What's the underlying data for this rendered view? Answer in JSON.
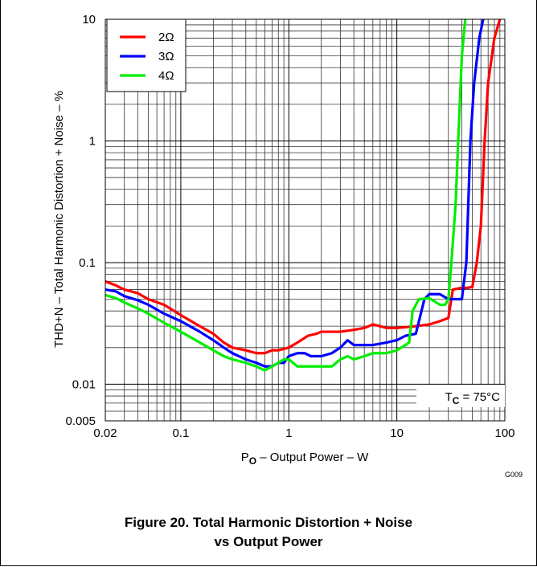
{
  "chart_data": {
    "type": "line",
    "xlabel_main": "P",
    "xlabel_sub": "O",
    "xlabel_rest": " – Output Power – W",
    "ylabel": "THD+N – Total Harmonic Distortion + Noise – %",
    "x_scale": "log",
    "y_scale": "log",
    "xlim": [
      0.02,
      100
    ],
    "ylim": [
      0.005,
      10
    ],
    "grid": true,
    "legend_position": "top-left",
    "x_ticks": [
      {
        "value": 0.02,
        "label": "0.02"
      },
      {
        "value": 0.1,
        "label": "0.1"
      },
      {
        "value": 1,
        "label": "1"
      },
      {
        "value": 10,
        "label": "10"
      },
      {
        "value": 100,
        "label": "100"
      }
    ],
    "y_ticks": [
      {
        "value": 0.005,
        "label": "0.005"
      },
      {
        "value": 0.01,
        "label": "0.01"
      },
      {
        "value": 0.1,
        "label": "0.1"
      },
      {
        "value": 1,
        "label": "1"
      },
      {
        "value": 10,
        "label": "10"
      }
    ],
    "annotation_main": "T",
    "annotation_sub": "C",
    "annotation_rest": " = 75°C",
    "code": "G009",
    "series": [
      {
        "name": "2Ω",
        "color": "#ff0000",
        "points": [
          [
            0.02,
            0.07
          ],
          [
            0.025,
            0.065
          ],
          [
            0.03,
            0.06
          ],
          [
            0.04,
            0.056
          ],
          [
            0.05,
            0.05
          ],
          [
            0.07,
            0.045
          ],
          [
            0.1,
            0.037
          ],
          [
            0.15,
            0.03
          ],
          [
            0.2,
            0.026
          ],
          [
            0.25,
            0.022
          ],
          [
            0.3,
            0.02
          ],
          [
            0.4,
            0.019
          ],
          [
            0.5,
            0.018
          ],
          [
            0.6,
            0.018
          ],
          [
            0.7,
            0.019
          ],
          [
            0.8,
            0.019
          ],
          [
            1,
            0.02
          ],
          [
            1.2,
            0.022
          ],
          [
            1.5,
            0.025
          ],
          [
            1.8,
            0.026
          ],
          [
            2,
            0.027
          ],
          [
            3,
            0.027
          ],
          [
            4,
            0.028
          ],
          [
            5,
            0.029
          ],
          [
            6,
            0.031
          ],
          [
            7,
            0.03
          ],
          [
            8,
            0.029
          ],
          [
            10,
            0.029
          ],
          [
            15,
            0.03
          ],
          [
            20,
            0.031
          ],
          [
            25,
            0.033
          ],
          [
            30,
            0.035
          ],
          [
            33,
            0.06
          ],
          [
            40,
            0.062
          ],
          [
            45,
            0.062
          ],
          [
            50,
            0.063
          ],
          [
            55,
            0.1
          ],
          [
            60,
            0.2
          ],
          [
            65,
            1
          ],
          [
            70,
            3
          ],
          [
            80,
            7
          ],
          [
            90,
            10
          ]
        ]
      },
      {
        "name": "3Ω",
        "color": "#0000ff",
        "points": [
          [
            0.02,
            0.06
          ],
          [
            0.025,
            0.058
          ],
          [
            0.03,
            0.053
          ],
          [
            0.04,
            0.049
          ],
          [
            0.05,
            0.045
          ],
          [
            0.07,
            0.038
          ],
          [
            0.1,
            0.033
          ],
          [
            0.15,
            0.027
          ],
          [
            0.2,
            0.023
          ],
          [
            0.25,
            0.02
          ],
          [
            0.3,
            0.018
          ],
          [
            0.4,
            0.016
          ],
          [
            0.5,
            0.015
          ],
          [
            0.6,
            0.014
          ],
          [
            0.7,
            0.014
          ],
          [
            0.8,
            0.015
          ],
          [
            0.9,
            0.015
          ],
          [
            1,
            0.017
          ],
          [
            1.2,
            0.018
          ],
          [
            1.4,
            0.018
          ],
          [
            1.6,
            0.017
          ],
          [
            2,
            0.017
          ],
          [
            2.5,
            0.018
          ],
          [
            3,
            0.02
          ],
          [
            3.5,
            0.023
          ],
          [
            4,
            0.021
          ],
          [
            5,
            0.021
          ],
          [
            6,
            0.021
          ],
          [
            8,
            0.022
          ],
          [
            10,
            0.023
          ],
          [
            12,
            0.025
          ],
          [
            15,
            0.026
          ],
          [
            18,
            0.05
          ],
          [
            20,
            0.055
          ],
          [
            25,
            0.055
          ],
          [
            30,
            0.05
          ],
          [
            35,
            0.05
          ],
          [
            40,
            0.05
          ],
          [
            44,
            0.1
          ],
          [
            48,
            1
          ],
          [
            52,
            3
          ],
          [
            58,
            7
          ],
          [
            63,
            10
          ]
        ]
      },
      {
        "name": "4Ω",
        "color": "#00ee00",
        "points": [
          [
            0.02,
            0.054
          ],
          [
            0.025,
            0.051
          ],
          [
            0.03,
            0.047
          ],
          [
            0.04,
            0.042
          ],
          [
            0.05,
            0.038
          ],
          [
            0.07,
            0.032
          ],
          [
            0.1,
            0.027
          ],
          [
            0.15,
            0.022
          ],
          [
            0.2,
            0.019
          ],
          [
            0.25,
            0.017
          ],
          [
            0.3,
            0.016
          ],
          [
            0.4,
            0.015
          ],
          [
            0.5,
            0.014
          ],
          [
            0.6,
            0.013
          ],
          [
            0.7,
            0.014
          ],
          [
            0.8,
            0.015
          ],
          [
            0.9,
            0.016
          ],
          [
            1,
            0.016
          ],
          [
            1.2,
            0.014
          ],
          [
            1.5,
            0.014
          ],
          [
            2,
            0.014
          ],
          [
            2.5,
            0.014
          ],
          [
            3,
            0.016
          ],
          [
            3.5,
            0.017
          ],
          [
            4,
            0.016
          ],
          [
            5,
            0.017
          ],
          [
            6,
            0.018
          ],
          [
            8,
            0.018
          ],
          [
            10,
            0.019
          ],
          [
            12,
            0.021
          ],
          [
            13,
            0.022
          ],
          [
            14,
            0.04
          ],
          [
            16,
            0.05
          ],
          [
            20,
            0.051
          ],
          [
            25,
            0.045
          ],
          [
            28,
            0.045
          ],
          [
            30,
            0.05
          ],
          [
            32,
            0.1
          ],
          [
            35,
            0.3
          ],
          [
            37,
            1
          ],
          [
            40,
            5
          ],
          [
            43,
            10
          ]
        ]
      }
    ]
  },
  "caption": {
    "line1": "Figure 20. Total Harmonic Distortion + Noise",
    "line2": "vs Output Power"
  }
}
